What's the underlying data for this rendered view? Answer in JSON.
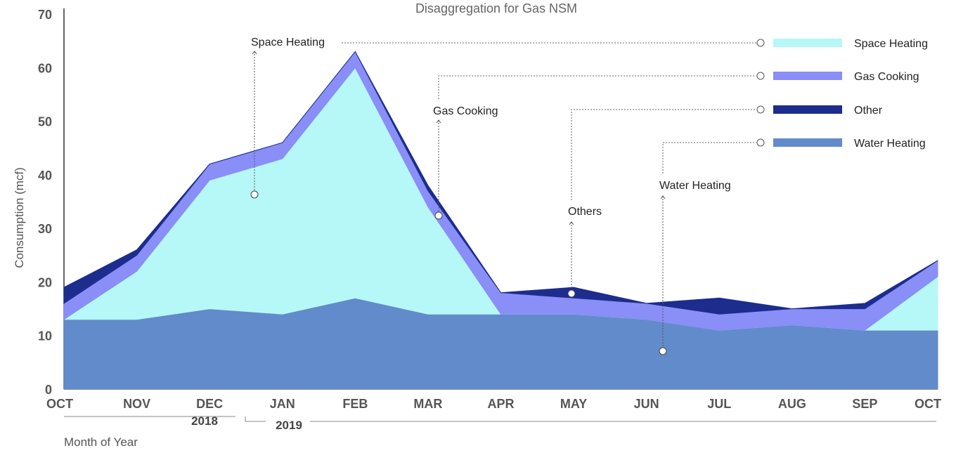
{
  "chart_data": {
    "type": "area",
    "title": "Disaggregation for Gas NSM",
    "xlabel": "Month of Year",
    "ylabel": "Consumption (mcf)",
    "ylim": [
      0,
      70
    ],
    "yticks": [
      "0",
      "10",
      "20",
      "30",
      "40",
      "50",
      "60",
      "70"
    ],
    "categories": [
      "OCT",
      "NOV",
      "DEC",
      "JAN",
      "FEB",
      "MAR",
      "APR",
      "MAY",
      "JUN",
      "JUL",
      "AUG",
      "SEP",
      "OCT"
    ],
    "year_groups": [
      "2018",
      "2019"
    ],
    "stacked": true,
    "grid": false,
    "legend_position": "right",
    "series": [
      {
        "name": "Water Heating",
        "color": "#628BCB",
        "values": [
          13,
          13,
          15,
          14,
          17,
          14,
          14,
          14,
          13,
          11,
          12,
          11,
          11
        ]
      },
      {
        "name": "Space Heating",
        "color": "#B5F8F7",
        "values": [
          0,
          9,
          24,
          29,
          43,
          20,
          0,
          0,
          0,
          0,
          0,
          0,
          10
        ]
      },
      {
        "name": "Gas Cooking",
        "color": "#8A8EF7",
        "values": [
          3,
          3,
          3,
          3,
          3,
          3,
          4,
          3,
          3,
          3,
          3,
          4,
          3
        ]
      },
      {
        "name": "Other",
        "color": "#1C2D8E",
        "values": [
          3,
          1,
          0,
          0,
          0,
          1,
          0,
          2,
          0,
          3,
          0,
          1,
          0
        ]
      }
    ],
    "legend_order": [
      "Space Heating",
      "Gas Cooking",
      "Other",
      "Water Heating"
    ],
    "annotations": [
      "Space Heating",
      "Gas Cooking",
      "Others",
      "Water Heating"
    ]
  }
}
